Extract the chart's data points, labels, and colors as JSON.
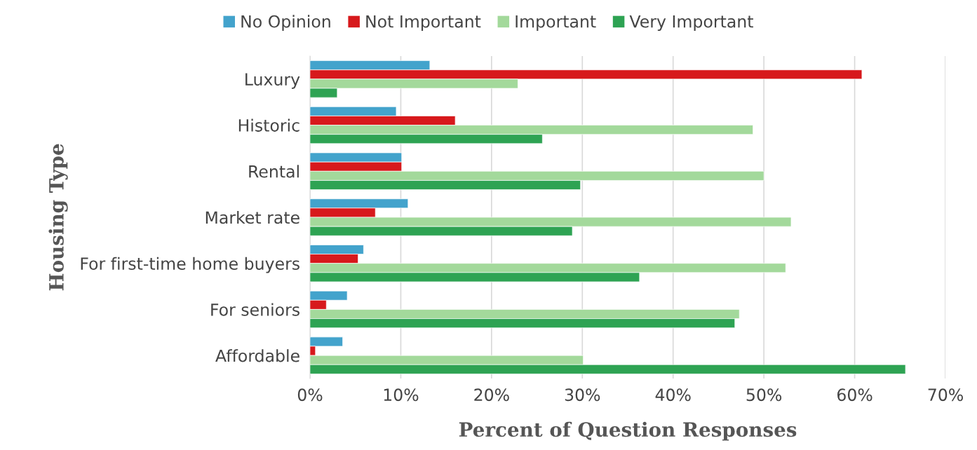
{
  "chart_data": {
    "type": "bar",
    "orientation": "horizontal",
    "xlabel": "Percent of Question Responses",
    "ylabel": "Housing Type",
    "categories": [
      "Luxury",
      "Historic",
      "Rental",
      "Market rate",
      "For first-time home buyers",
      "For seniors",
      "Affordable"
    ],
    "series": [
      {
        "name": "No Opinion",
        "color": "#43a3cc",
        "values": [
          13.2,
          9.5,
          10.1,
          10.8,
          5.9,
          4.1,
          3.6
        ]
      },
      {
        "name": "Not Important",
        "color": "#d7191c",
        "values": [
          60.8,
          16.0,
          10.1,
          7.2,
          5.3,
          1.8,
          0.6
        ]
      },
      {
        "name": "Important",
        "color": "#a3d99b",
        "values": [
          22.9,
          48.8,
          50.0,
          53.0,
          52.4,
          47.3,
          30.1
        ]
      },
      {
        "name": "Very Important",
        "color": "#2ea353",
        "values": [
          3.0,
          25.6,
          29.8,
          28.9,
          36.3,
          46.8,
          65.6
        ]
      }
    ],
    "xlim": [
      0,
      70
    ],
    "xticks": [
      {
        "value": 0,
        "label": "0%"
      },
      {
        "value": 10,
        "label": "10%"
      },
      {
        "value": 20,
        "label": "20%"
      },
      {
        "value": 30,
        "label": "30%"
      },
      {
        "value": 40,
        "label": "40%"
      },
      {
        "value": 50,
        "label": "50%"
      },
      {
        "value": 60,
        "label": "60%"
      },
      {
        "value": 70,
        "label": "70%"
      }
    ],
    "grid": "x",
    "legend": "top"
  }
}
